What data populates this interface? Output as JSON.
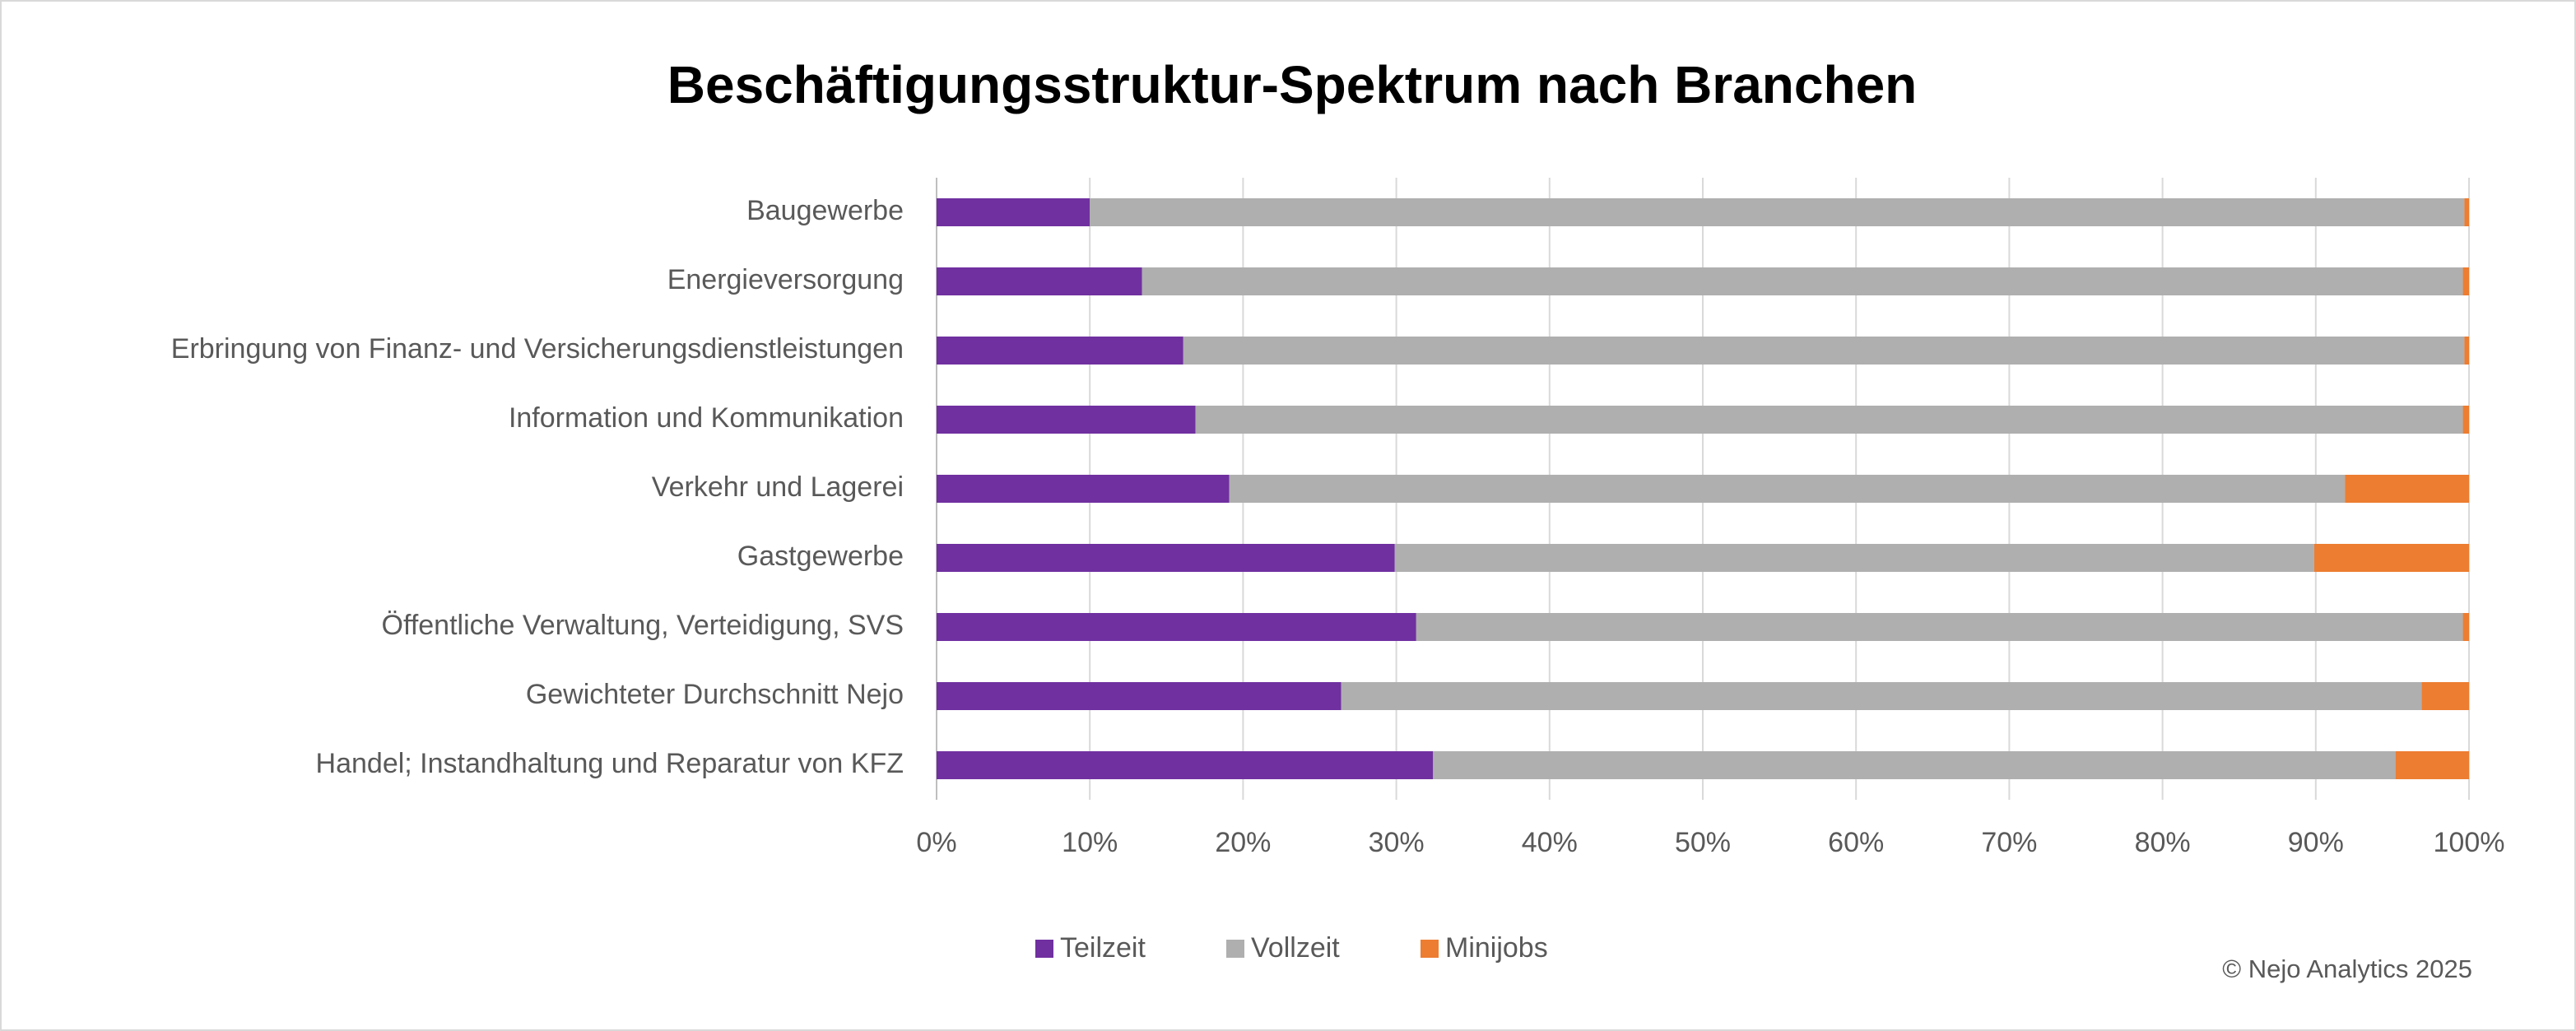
{
  "chart_data": {
    "type": "stacked-barh",
    "title": "Beschäftigungsstruktur-Spektrum nach Branchen",
    "categories": [
      "Baugewerbe",
      "Energieversorgung",
      "Erbringung von Finanz- und Versicherungsdienstleistungen",
      "Information und Kommunikation",
      "Verkehr und Lagerei",
      "Gastgewerbe",
      "Öffentliche Verwaltung, Verteidigung, SVS",
      "Gewichteter Durchschnitt Nejo",
      "Handel; Instandhaltung und Reparatur von KFZ"
    ],
    "series": [
      {
        "name": "Teilzeit",
        "color": "#7030a0",
        "values": [
          10,
          13.4,
          16.1,
          16.9,
          19.1,
          29.9,
          31.3,
          26.4,
          32.4
        ]
      },
      {
        "name": "Vollzeit",
        "color": "#afafaf",
        "values": [
          89.7,
          86.2,
          83.6,
          82.7,
          72.8,
          60,
          68.3,
          70.5,
          62.8
        ]
      },
      {
        "name": "Minijobs",
        "color": "#ed7d31",
        "values": [
          0.3,
          0.4,
          0.3,
          0.4,
          8.1,
          10.1,
          0.4,
          3.1,
          4.8
        ]
      }
    ],
    "xlim": [
      0,
      100
    ],
    "xticks": [
      {
        "value": 0,
        "label": "0%"
      },
      {
        "value": 10,
        "label": "10%"
      },
      {
        "value": 20,
        "label": "20%"
      },
      {
        "value": 30,
        "label": "30%"
      },
      {
        "value": 40,
        "label": "40%"
      },
      {
        "value": 50,
        "label": "50%"
      },
      {
        "value": 60,
        "label": "60%"
      },
      {
        "value": 70,
        "label": "70%"
      },
      {
        "value": 80,
        "label": "80%"
      },
      {
        "value": 90,
        "label": "90%"
      },
      {
        "value": 100,
        "label": "100%"
      }
    ],
    "grid": true,
    "legend": "bottom",
    "footer": "© Nejo Analytics 2025"
  }
}
